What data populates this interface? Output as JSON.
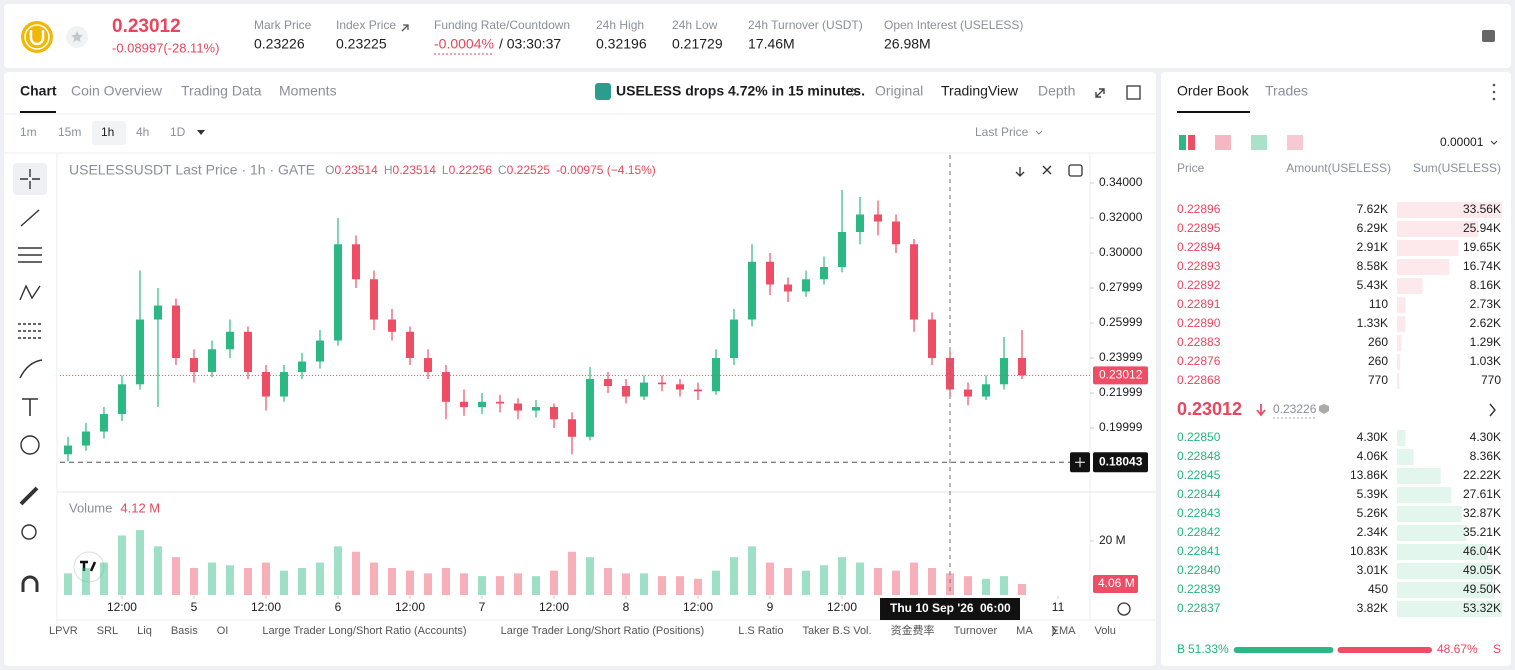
{
  "header": {
    "price": "0.23012",
    "change": "-0.08997(-28.11%)",
    "stats": [
      {
        "label": "Mark Price",
        "value": "0.23226"
      },
      {
        "label": "Index Price",
        "value": "0.23225"
      },
      {
        "label": "Funding Rate/Countdown",
        "value": "-0.0004%",
        "extra": "/ 03:30:37"
      },
      {
        "label": "24h High",
        "value": "0.32196"
      },
      {
        "label": "24h Low",
        "value": "0.21729"
      },
      {
        "label": "24h Turnover (USDT)",
        "value": "17.46M"
      },
      {
        "label": "Open Interest (USELESS)",
        "value": "26.98M"
      }
    ]
  },
  "tabs": [
    "Chart",
    "Coin Overview",
    "Trading Data",
    "Moments"
  ],
  "news": "USELESS drops 4.72% in 15 minutes.",
  "views": [
    "Original",
    "TradingView",
    "Depth"
  ],
  "intervals": [
    "1m",
    "15m",
    "1h",
    "4h",
    "1D"
  ],
  "price_type": "Last Price",
  "indicators": [
    "LPVR",
    "SRL",
    "Liq",
    "Basis",
    "OI",
    "Large Trader Long/Short Ratio (Accounts)",
    "Large Trader Long/Short Ratio (Positions)",
    "L.S Ratio",
    "Taker B.S Vol.",
    "资金费率",
    "Turnover",
    "MA",
    "EMA",
    "Volu"
  ],
  "chart_data": {
    "type": "candlestick",
    "title": "USELESSUSDT Last Price · 1h · GATE",
    "ohlc_legend": [
      {
        "key": "O",
        "value": "0.23514"
      },
      {
        "key": "H",
        "value": "0.23514"
      },
      {
        "key": "L",
        "value": "0.22256"
      },
      {
        "key": "C",
        "value": "0.22525"
      }
    ],
    "legend_change": "-0.00975 (−4.15%)",
    "up_color": "#2bb884",
    "down_color": "#ee4d66",
    "x": [
      -9,
      -6,
      -3,
      0,
      3,
      6,
      9,
      12,
      15,
      18,
      21,
      24,
      27,
      30,
      33,
      36,
      39,
      42,
      45,
      48,
      51,
      54,
      57,
      60,
      63,
      66,
      69,
      72,
      75,
      78,
      81,
      84,
      87,
      90,
      93,
      96,
      99,
      102,
      105,
      108,
      111,
      114,
      117,
      120,
      123,
      126,
      129,
      132,
      135,
      138,
      141,
      144,
      147,
      150
    ],
    "ohlc": [
      [
        0.185,
        0.195,
        0.181,
        0.19
      ],
      [
        0.19,
        0.203,
        0.187,
        0.198
      ],
      [
        0.198,
        0.212,
        0.194,
        0.208
      ],
      [
        0.208,
        0.23,
        0.204,
        0.225
      ],
      [
        0.225,
        0.29,
        0.222,
        0.262
      ],
      [
        0.262,
        0.28,
        0.212,
        0.27
      ],
      [
        0.27,
        0.274,
        0.236,
        0.24
      ],
      [
        0.24,
        0.245,
        0.226,
        0.232
      ],
      [
        0.232,
        0.25,
        0.229,
        0.245
      ],
      [
        0.245,
        0.262,
        0.24,
        0.255
      ],
      [
        0.255,
        0.258,
        0.228,
        0.232
      ],
      [
        0.232,
        0.236,
        0.21,
        0.218
      ],
      [
        0.218,
        0.236,
        0.215,
        0.232
      ],
      [
        0.232,
        0.243,
        0.228,
        0.238
      ],
      [
        0.238,
        0.256,
        0.234,
        0.25
      ],
      [
        0.25,
        0.32,
        0.247,
        0.305
      ],
      [
        0.305,
        0.31,
        0.28,
        0.285
      ],
      [
        0.285,
        0.29,
        0.256,
        0.262
      ],
      [
        0.262,
        0.268,
        0.25,
        0.255
      ],
      [
        0.255,
        0.258,
        0.236,
        0.24
      ],
      [
        0.24,
        0.245,
        0.228,
        0.232
      ],
      [
        0.232,
        0.236,
        0.205,
        0.215
      ],
      [
        0.215,
        0.222,
        0.207,
        0.212
      ],
      [
        0.212,
        0.22,
        0.208,
        0.215
      ],
      [
        0.215,
        0.219,
        0.209,
        0.214
      ],
      [
        0.214,
        0.217,
        0.205,
        0.21
      ],
      [
        0.21,
        0.216,
        0.206,
        0.212
      ],
      [
        0.212,
        0.214,
        0.2,
        0.205
      ],
      [
        0.205,
        0.209,
        0.185,
        0.195
      ],
      [
        0.195,
        0.235,
        0.193,
        0.228
      ],
      [
        0.228,
        0.232,
        0.22,
        0.224
      ],
      [
        0.224,
        0.228,
        0.214,
        0.218
      ],
      [
        0.218,
        0.23,
        0.216,
        0.226
      ],
      [
        0.226,
        0.23,
        0.221,
        0.225
      ],
      [
        0.225,
        0.228,
        0.218,
        0.222
      ],
      [
        0.222,
        0.226,
        0.216,
        0.221
      ],
      [
        0.221,
        0.245,
        0.219,
        0.24
      ],
      [
        0.24,
        0.268,
        0.236,
        0.262
      ],
      [
        0.262,
        0.305,
        0.258,
        0.295
      ],
      [
        0.295,
        0.3,
        0.276,
        0.282
      ],
      [
        0.282,
        0.286,
        0.272,
        0.278
      ],
      [
        0.278,
        0.29,
        0.275,
        0.285
      ],
      [
        0.285,
        0.298,
        0.282,
        0.292
      ],
      [
        0.292,
        0.336,
        0.289,
        0.312
      ],
      [
        0.312,
        0.332,
        0.305,
        0.322
      ],
      [
        0.322,
        0.33,
        0.31,
        0.318
      ],
      [
        0.318,
        0.322,
        0.3,
        0.305
      ],
      [
        0.305,
        0.308,
        0.255,
        0.262
      ],
      [
        0.262,
        0.266,
        0.236,
        0.24
      ],
      [
        0.24,
        0.244,
        0.218,
        0.222
      ],
      [
        0.222,
        0.226,
        0.213,
        0.218
      ],
      [
        0.218,
        0.23,
        0.216,
        0.225
      ],
      [
        0.225,
        0.252,
        0.222,
        0.24
      ],
      [
        0.24,
        0.256,
        0.228,
        0.23012
      ]
    ],
    "xlim": [
      -10.33,
      161.33
    ],
    "xticks": [
      {
        "value": 0,
        "label": "12:00"
      },
      {
        "value": 12,
        "label": "5"
      },
      {
        "value": 24,
        "label": "12:00"
      },
      {
        "value": 36,
        "label": "6"
      },
      {
        "value": 48,
        "label": "12:00"
      },
      {
        "value": 60,
        "label": "7"
      },
      {
        "value": 72,
        "label": "12:00"
      },
      {
        "value": 84,
        "label": "8"
      },
      {
        "value": 96,
        "label": "12:00"
      },
      {
        "value": 108,
        "label": "9"
      },
      {
        "value": 120,
        "label": "12:00"
      },
      {
        "value": 156,
        "label": "11"
      }
    ],
    "ylim": [
      0.1646,
      0.356
    ],
    "yticks": [
      {
        "value": 0.34,
        "label": "0.34000"
      },
      {
        "value": 0.32,
        "label": "0.32000"
      },
      {
        "value": 0.3,
        "label": "0.30000"
      },
      0.27999,
      0.25999,
      0.23999,
      0.21999,
      0.19999
    ],
    "grid": false,
    "last_price": 0.23012,
    "crosshair_price": 0.18043,
    "crosshair_x": 138,
    "crosshair_date": "Thu 10 Sep '26",
    "crosshair_time": "06:00",
    "volume_title": "Volume",
    "volume_value": "4.12 M",
    "volume": [
      8,
      10,
      12,
      22,
      24,
      18,
      14,
      10,
      12,
      11,
      10,
      12,
      9,
      10,
      12,
      18,
      16,
      12,
      10,
      9,
      8,
      10,
      8,
      7,
      7,
      8,
      7,
      9,
      16,
      14,
      10,
      8,
      8,
      7,
      7,
      6,
      9,
      14,
      18,
      12,
      10,
      9,
      11,
      14,
      12,
      10,
      9,
      12,
      10,
      8,
      7,
      6,
      7,
      4.06
    ],
    "volume_ylim": [
      0,
      37
    ],
    "volume_ticks": [
      {
        "value": 20,
        "label": "20 M"
      }
    ],
    "volume_last": {
      "value": 4.06,
      "label": "4.06 M"
    }
  },
  "order_book": {
    "tabs": [
      "Order Book",
      "Trades"
    ],
    "precision": "0.00001",
    "columns": [
      "Price",
      "Amount(USELESS)",
      "Sum(USELESS)"
    ],
    "asks": [
      {
        "price": "0.22896",
        "amount": "7.62K",
        "sum": {
          "value": 33560,
          "label": "33.56K"
        }
      },
      {
        "price": "0.22895",
        "amount": "6.29K",
        "sum": {
          "value": 25940,
          "label": "25.94K"
        }
      },
      {
        "price": "0.22894",
        "amount": "2.91K",
        "sum": {
          "value": 19650,
          "label": "19.65K"
        }
      },
      {
        "price": "0.22893",
        "amount": "8.58K",
        "sum": {
          "value": 16740,
          "label": "16.74K"
        }
      },
      {
        "price": "0.22892",
        "amount": "5.43K",
        "sum": {
          "value": 8160,
          "label": "8.16K"
        }
      },
      {
        "price": "0.22891",
        "amount": "110",
        "sum": {
          "value": 2730,
          "label": "2.73K"
        }
      },
      {
        "price": "0.22890",
        "amount": "1.33K",
        "sum": {
          "value": 2620,
          "label": "2.62K"
        }
      },
      {
        "price": "0.22883",
        "amount": "260",
        "sum": {
          "value": 1290,
          "label": "1.29K"
        }
      },
      {
        "price": "0.22876",
        "amount": "260",
        "sum": {
          "value": 1030,
          "label": "1.03K"
        }
      },
      {
        "price": "0.22868",
        "amount": "770",
        "sum": 770
      }
    ],
    "mid_price": "0.23012",
    "mark_price": "0.23226",
    "bids": [
      {
        "price": "0.22850",
        "amount": "4.30K",
        "sum": {
          "value": 4300,
          "label": "4.30K"
        }
      },
      {
        "price": "0.22848",
        "amount": "4.06K",
        "sum": {
          "value": 8360,
          "label": "8.36K"
        }
      },
      {
        "price": "0.22845",
        "amount": "13.86K",
        "sum": {
          "value": 22220,
          "label": "22.22K"
        }
      },
      {
        "price": "0.22844",
        "amount": "5.39K",
        "sum": {
          "value": 27610,
          "label": "27.61K"
        }
      },
      {
        "price": "0.22843",
        "amount": "5.26K",
        "sum": {
          "value": 32870,
          "label": "32.87K"
        }
      },
      {
        "price": "0.22842",
        "amount": "2.34K",
        "sum": {
          "value": 35210,
          "label": "35.21K"
        }
      },
      {
        "price": "0.22841",
        "amount": "10.83K",
        "sum": {
          "value": 46040,
          "label": "46.04K"
        }
      },
      {
        "price": "0.22840",
        "amount": "3.01K",
        "sum": {
          "value": 49050,
          "label": "49.05K"
        }
      },
      {
        "price": "0.22839",
        "amount": "450",
        "sum": {
          "value": 49500,
          "label": "49.50K"
        }
      },
      {
        "price": "0.22837",
        "amount": "3.82K",
        "sum": {
          "value": 53320,
          "label": "53.32K"
        }
      }
    ],
    "buy_key": "B",
    "sell_key": "S",
    "buy": {
      "value": 51.33,
      "label": "51.33%"
    },
    "sell": {
      "value": 48.67,
      "label": "48.67%"
    }
  }
}
